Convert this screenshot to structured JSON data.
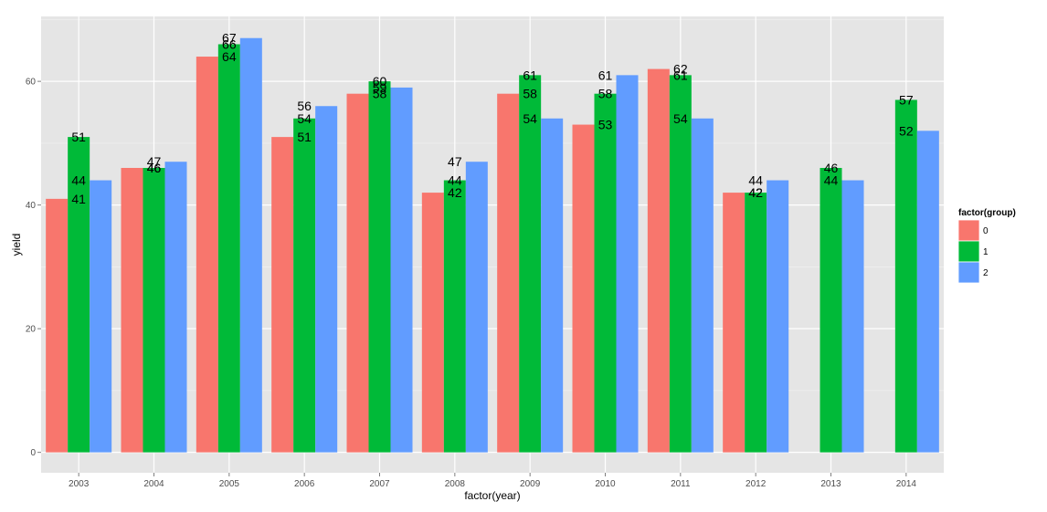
{
  "chart_data": {
    "type": "bar",
    "xlabel": "factor(year)",
    "ylabel": "yield",
    "ylim": [
      -3.3,
      70.5
    ],
    "yticks": [
      0,
      20,
      40,
      60
    ],
    "grid": true,
    "legend_placement": "right",
    "legend_title": "factor(group)",
    "categories": [
      "2003",
      "2004",
      "2005",
      "2006",
      "2007",
      "2008",
      "2009",
      "2010",
      "2011",
      "2012",
      "2013",
      "2014"
    ],
    "series": [
      {
        "name": "0",
        "color": "#F8766D",
        "values": [
          41,
          46,
          64,
          51,
          58,
          42,
          58,
          53,
          62,
          42,
          null,
          null
        ]
      },
      {
        "name": "1",
        "color": "#00BA38",
        "values": [
          51,
          46,
          66,
          54,
          60,
          44,
          61,
          58,
          61,
          42,
          46,
          57
        ]
      },
      {
        "name": "2",
        "color": "#619CFF",
        "values": [
          44,
          47,
          67,
          56,
          59,
          47,
          54,
          61,
          54,
          44,
          44,
          52
        ]
      }
    ],
    "annotations": [
      {
        "category": "2003",
        "labels": [
          41,
          51,
          44
        ]
      },
      {
        "category": "2004",
        "labels": [
          46,
          46,
          47
        ]
      },
      {
        "category": "2005",
        "labels": [
          64,
          66,
          67
        ]
      },
      {
        "category": "2006",
        "labels": [
          51,
          54,
          56
        ]
      },
      {
        "category": "2007",
        "labels": [
          58,
          60,
          59
        ]
      },
      {
        "category": "2008",
        "labels": [
          42,
          44,
          47
        ]
      },
      {
        "category": "2009",
        "labels": [
          58,
          61,
          54
        ]
      },
      {
        "category": "2010",
        "labels": [
          53,
          58,
          61
        ]
      },
      {
        "category": "2011",
        "labels": [
          62,
          61,
          54
        ]
      },
      {
        "category": "2012",
        "labels": [
          42,
          42,
          44
        ]
      },
      {
        "category": "2013",
        "labels": [
          46,
          44
        ]
      },
      {
        "category": "2014",
        "labels": [
          57,
          52
        ]
      }
    ]
  }
}
